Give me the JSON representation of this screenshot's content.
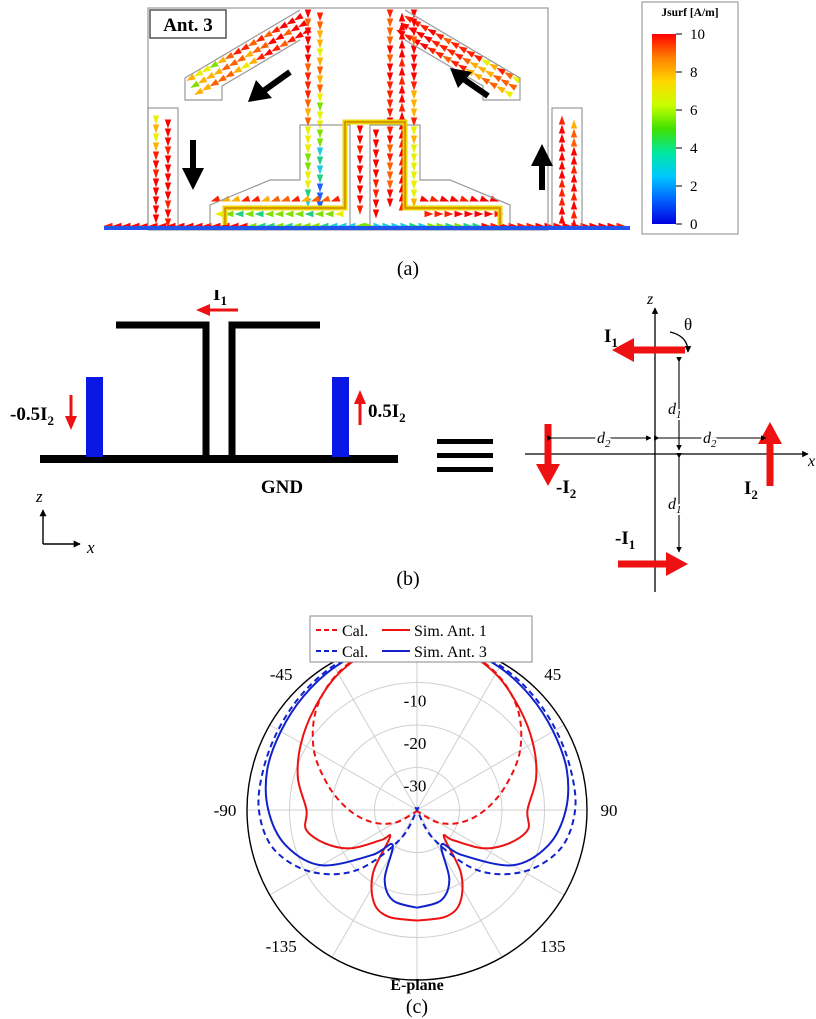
{
  "panel_a": {
    "label": "Ant. 3",
    "caption": "(a)",
    "colorbar": {
      "title": "Jsurf  [A/m]",
      "ticks": [
        "10",
        "8",
        "6",
        "4",
        "2",
        "0"
      ],
      "colors": [
        "#ff0000",
        "#ff8000",
        "#ffd800",
        "#c8ff00",
        "#40e000",
        "#00e8a0",
        "#00c8ff",
        "#0060ff",
        "#0000e0"
      ]
    }
  },
  "panel_b": {
    "caption": "(b)",
    "i1": "I",
    "i1_sub": "1",
    "left_src": "-0.5I",
    "left_src_sub": "2",
    "right_src": "0.5I",
    "right_src_sub": "2",
    "gnd": "GND",
    "axis_z": "z",
    "axis_x": "x",
    "equiv_z": "z",
    "equiv_x": "x",
    "theta": "θ",
    "eq_i1": "I",
    "eq_i1_sub": "1",
    "eq_neg_i1": "-I",
    "eq_neg_i1_sub": "1",
    "eq_i2": "I",
    "eq_i2_sub": "2",
    "eq_neg_i2": "-I",
    "eq_neg_i2_sub": "2",
    "d1_upper": "d",
    "d1_upper_sub": "1",
    "d1_lower": "d",
    "d1_lower_sub": "1",
    "d2_left": "d",
    "d2_left_sub": "2",
    "d2_right": "d",
    "d2_right_sub": "2"
  },
  "panel_c": {
    "caption": "(c)",
    "plane_label": "E-plane"
  },
  "chart_data": {
    "type": "polar",
    "title": "E-plane",
    "angle_ticks": [
      "-45",
      "45",
      "-90",
      "90",
      "-135",
      "135"
    ],
    "radial_ticks": [
      "-10",
      "-20",
      "-30"
    ],
    "rlim": [
      -40,
      0
    ],
    "legend": {
      "placement": "top",
      "entries": [
        "Cal.",
        "Sim. Ant. 1",
        "Cal.",
        "Sim. Ant. 3"
      ]
    },
    "colors": {
      "red": "#ee1111",
      "blue": "#1122cc"
    },
    "series": [
      {
        "name": "Cal.",
        "color": "#ee1111",
        "dash": true,
        "theta": [
          0,
          15,
          30,
          45,
          60,
          75,
          90,
          105,
          120,
          135,
          150,
          165,
          180
        ],
        "values": [
          0,
          -0.8,
          -2.8,
          -6.5,
          -12,
          -18.5,
          -24,
          -29,
          -34,
          -39,
          -40,
          -40,
          -40
        ]
      },
      {
        "name": "Sim. Ant. 1",
        "color": "#ee1111",
        "dash": false,
        "theta": [
          0,
          15,
          30,
          45,
          60,
          75,
          90,
          100,
          110,
          120,
          130,
          135,
          145,
          155,
          165,
          180
        ],
        "values": [
          0,
          -0.9,
          -3,
          -6,
          -8.5,
          -11,
          -14,
          -13.5,
          -17,
          -22,
          -29,
          -31,
          -22,
          -16,
          -14,
          -14
        ]
      },
      {
        "name": "Cal.",
        "color": "#1122cc",
        "dash": true,
        "theta": [
          0,
          15,
          30,
          45,
          60,
          75,
          90,
          105,
          120,
          135,
          150,
          165,
          180
        ],
        "values": [
          0,
          -0.2,
          -0.8,
          -1.6,
          -2.3,
          -2.6,
          -2.8,
          -5,
          -11,
          -20,
          -32,
          -40,
          -40
        ]
      },
      {
        "name": "Sim. Ant. 3",
        "color": "#1122cc",
        "dash": false,
        "theta": [
          0,
          15,
          30,
          45,
          60,
          75,
          90,
          105,
          120,
          135,
          145,
          155,
          165,
          180
        ],
        "values": [
          0,
          -0.4,
          -1.2,
          -2.2,
          -3,
          -3.5,
          -5,
          -8,
          -14,
          -25,
          -30,
          -22,
          -18,
          -17
        ]
      }
    ]
  }
}
